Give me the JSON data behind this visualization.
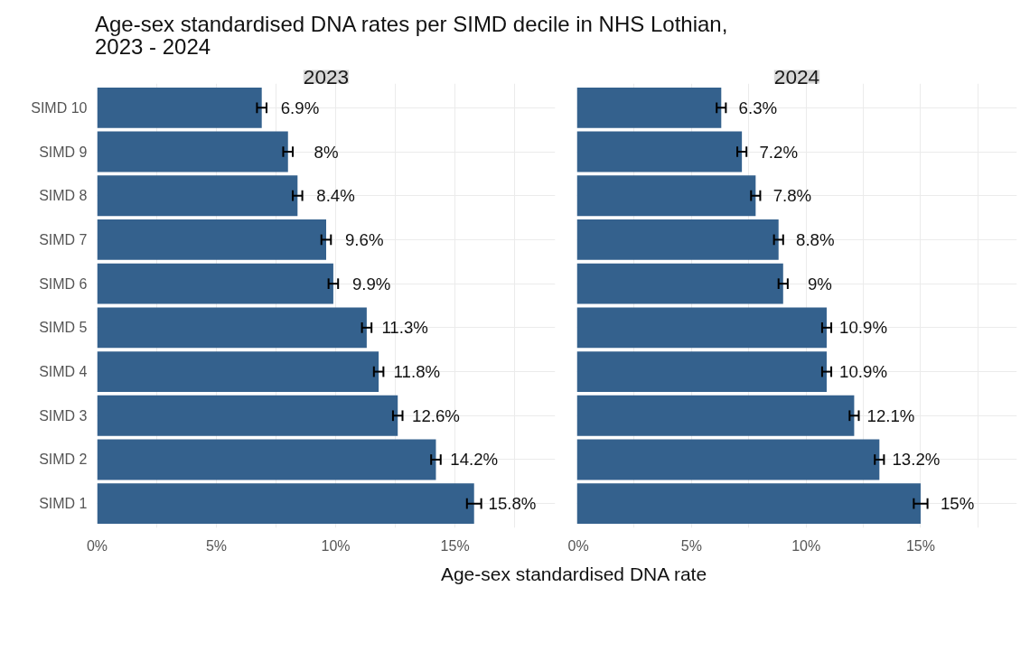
{
  "chart_data": [
    {
      "type": "bar",
      "orientation": "horizontal",
      "title": "Age-sex standardised DNA rates per SIMD decile in NHS Lothian, 2023 - 2024",
      "subtitle": "2023",
      "xlabel": "Age-sex standardised DNA rate",
      "categories": [
        "SIMD 10",
        "SIMD 9",
        "SIMD 8",
        "SIMD 7",
        "SIMD 6",
        "SIMD 5",
        "SIMD 4",
        "SIMD 3",
        "SIMD 2",
        "SIMD 1"
      ],
      "values": [
        6.9,
        8,
        8.4,
        9.6,
        9.9,
        11.3,
        11.8,
        12.6,
        14.2,
        15.8
      ],
      "errors": [
        0.2,
        0.2,
        0.2,
        0.2,
        0.2,
        0.2,
        0.2,
        0.2,
        0.2,
        0.3
      ],
      "value_labels": [
        "6.9%",
        "8%",
        "8.4%",
        "9.6%",
        "9.9%",
        "11.3%",
        "11.8%",
        "12.6%",
        "14.2%",
        "15.8%"
      ],
      "color": "#34618d",
      "xlim": [
        0,
        19.2
      ],
      "xticks": [
        {
          "value": 0,
          "label": "0%"
        },
        {
          "value": 2.5,
          "label": null
        },
        {
          "value": 5,
          "label": "5%"
        },
        {
          "value": 7.5,
          "label": null
        },
        {
          "value": 10,
          "label": "10%"
        },
        {
          "value": 12.5,
          "label": null
        },
        {
          "value": 15,
          "label": "15%"
        },
        {
          "value": 17.5,
          "label": null
        }
      ],
      "grid": true
    },
    {
      "type": "bar",
      "orientation": "horizontal",
      "subtitle": "2024",
      "tick_labels": "x",
      "values": [
        6.3,
        7.2,
        7.8,
        8.8,
        9,
        10.9,
        10.9,
        12.1,
        13.2,
        15
      ],
      "errors": [
        0.2,
        0.2,
        0.2,
        0.2,
        0.2,
        0.2,
        0.2,
        0.2,
        0.2,
        0.3
      ],
      "value_labels": [
        "6.3%",
        "7.2%",
        "7.8%",
        "8.8%",
        "9%",
        "10.9%",
        "10.9%",
        "12.1%",
        "13.2%",
        "15%"
      ],
      "color": "#34618d",
      "xlim": [
        0,
        19.2
      ],
      "xticks": [
        {
          "value": 0,
          "label": "0%"
        },
        {
          "value": 2.5,
          "label": null
        },
        {
          "value": 5,
          "label": "5%"
        },
        {
          "value": 7.5,
          "label": null
        },
        {
          "value": 10,
          "label": "10%"
        },
        {
          "value": 12.5,
          "label": null
        },
        {
          "value": 15,
          "label": "15%"
        },
        {
          "value": 17.5,
          "label": null
        }
      ],
      "grid": true
    }
  ]
}
